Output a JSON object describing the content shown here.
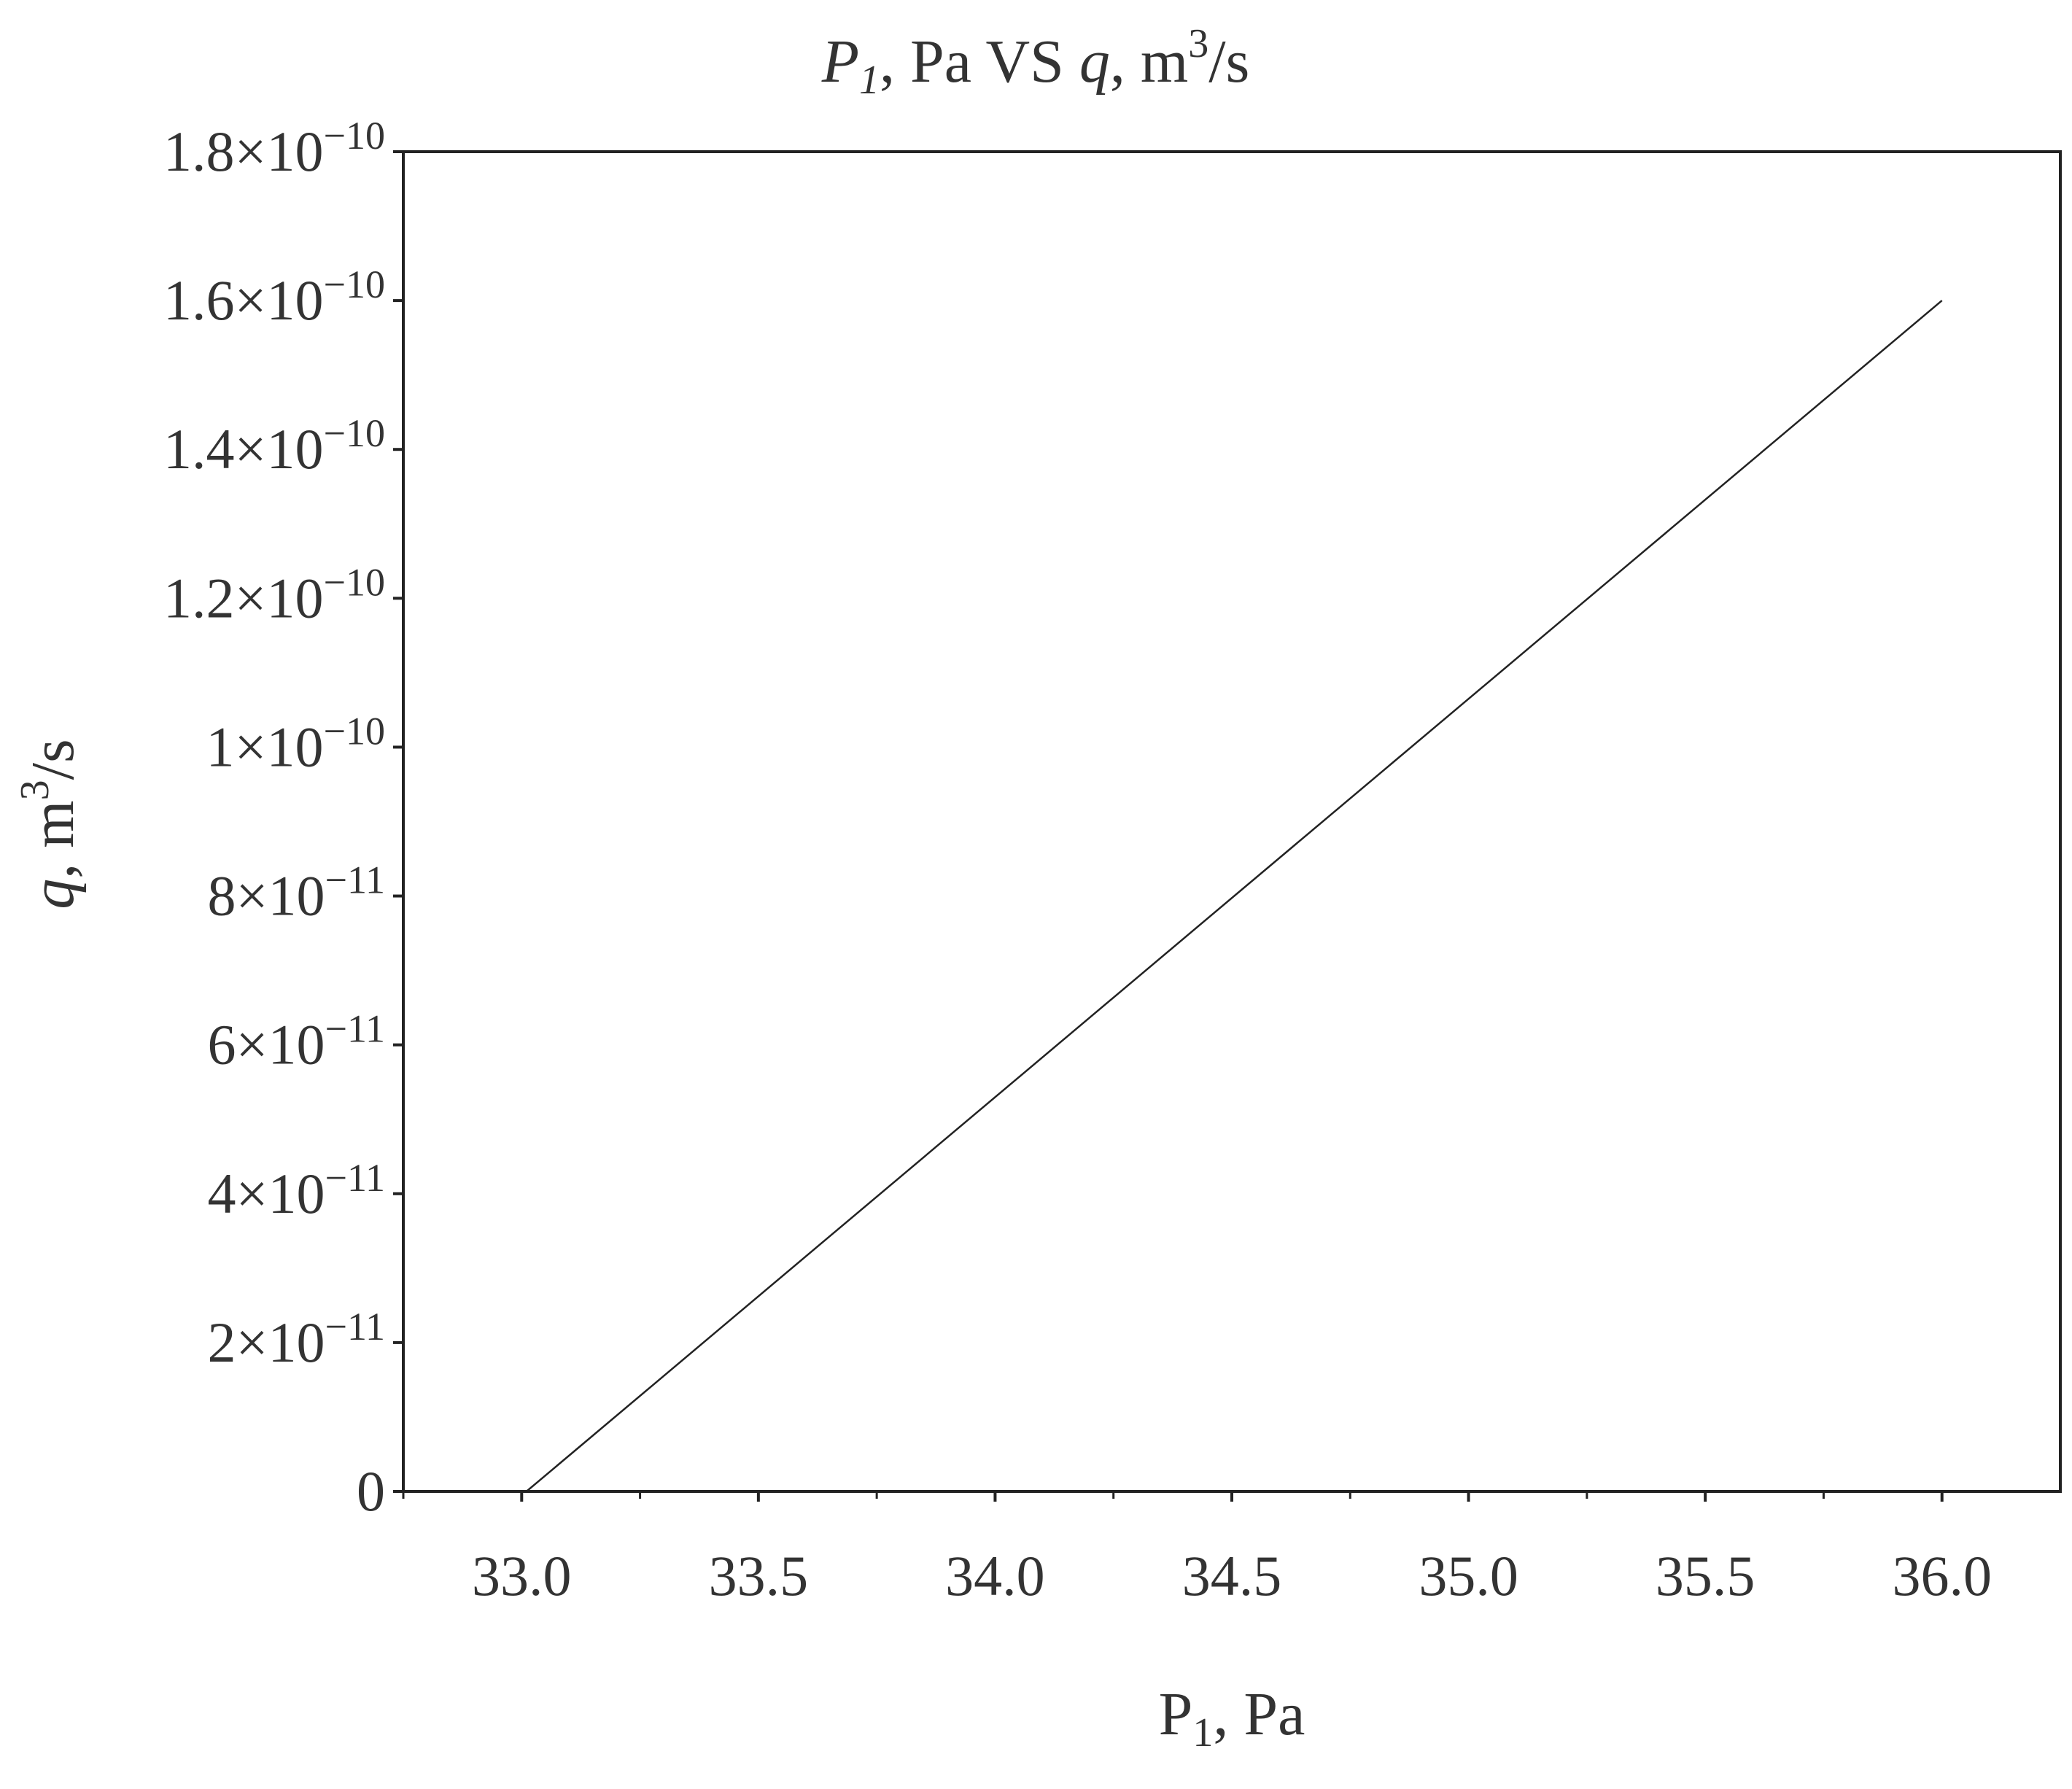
{
  "chart_data": {
    "type": "line",
    "title": {
      "var1": "P",
      "var1_sub": "1",
      "mid": ", Pa VS ",
      "var2": "q",
      "unit_pre": ", m",
      "unit_sup": "3",
      "unit_post": "/s"
    },
    "xlabel": {
      "base": "P",
      "sub": "1",
      "rest": ", Pa"
    },
    "ylabel": {
      "var": "q",
      "unit_pre": ", m",
      "unit_sup": "3",
      "unit_post": "/s"
    },
    "xlim": [
      32.75,
      36.25
    ],
    "ylim": [
      0,
      1.8e-10
    ],
    "x_ticks": [
      {
        "value": 33.0,
        "label": "33.0"
      },
      {
        "value": 33.5,
        "label": "33.5"
      },
      {
        "value": 34.0,
        "label": "34.0"
      },
      {
        "value": 34.5,
        "label": "34.5"
      },
      {
        "value": 35.0,
        "label": "35.0"
      },
      {
        "value": 35.5,
        "label": "35.5"
      },
      {
        "value": 36.0,
        "label": "36.0"
      }
    ],
    "x_minor_ticks": [
      32.75,
      33.25,
      33.75,
      34.25,
      34.75,
      35.25,
      35.75
    ],
    "y_ticks": [
      {
        "value": 0,
        "mant": "0",
        "exp": ""
      },
      {
        "value": 2e-11,
        "mant": "2×10",
        "exp": "−11"
      },
      {
        "value": 4e-11,
        "mant": "4×10",
        "exp": "−11"
      },
      {
        "value": 6e-11,
        "mant": "6×10",
        "exp": "−11"
      },
      {
        "value": 8e-11,
        "mant": "8×10",
        "exp": "−11"
      },
      {
        "value": 1e-10,
        "mant": "1×10",
        "exp": "−10"
      },
      {
        "value": 1.2e-10,
        "mant": "1.2×10",
        "exp": "−10"
      },
      {
        "value": 1.4e-10,
        "mant": "1.4×10",
        "exp": "−10"
      },
      {
        "value": 1.6e-10,
        "mant": "1.6×10",
        "exp": "−10"
      },
      {
        "value": 1.8e-10,
        "mant": "1.8×10",
        "exp": "−10"
      }
    ],
    "series": [
      {
        "x": [
          33.01,
          36.0
        ],
        "y": [
          0,
          1.6e-10
        ]
      }
    ],
    "grid": false,
    "legend": "none",
    "line_color": "#222222",
    "axis_color": "#222222"
  }
}
